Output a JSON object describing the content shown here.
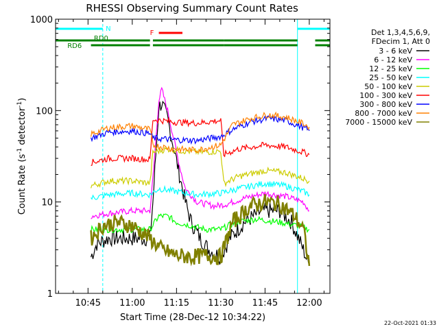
{
  "chart_data": {
    "type": "line",
    "title": "RHESSI Observing Summary Count Rates",
    "xlabel": "Start Time (28-Dec-12 10:34:22)",
    "ylabel_main": "Count Rate (s",
    "ylabel_sup1": "-1",
    "ylabel_mid": " detector",
    "ylabel_sup2": "-1",
    "ylabel_end": ")",
    "footer": "22-Oct-2021 01:33",
    "y_scale": "log",
    "ylim": [
      1,
      1000
    ],
    "xlim": [
      "10:34",
      "12:07"
    ],
    "x_ticks": [
      "10:45",
      "11:00",
      "11:15",
      "11:30",
      "11:45",
      "12:00"
    ],
    "y_ticks": [
      "1",
      "10",
      "100",
      "1000"
    ],
    "legend_header": [
      "Det 1,3,4,5,6,9,",
      "FDecim 1, Att 0"
    ],
    "legend_position": "right",
    "flags": [
      {
        "label": "N",
        "color": "#00ffff",
        "segments": [
          [
            "10:34",
            "10:50"
          ],
          [
            "11:56",
            "12:07"
          ]
        ]
      },
      {
        "label": "F",
        "color": "#ff0000",
        "segments": [
          [
            "11:09",
            "11:17"
          ]
        ]
      },
      {
        "label": "RD0",
        "color": "#008000",
        "segments": [
          [
            "10:34",
            "11:06"
          ],
          [
            "11:07",
            "11:31"
          ],
          [
            "11:31",
            "11:56"
          ],
          [
            "12:02",
            "12:07"
          ]
        ]
      },
      {
        "label": "RD6",
        "color": "#008000",
        "segments": [
          [
            "10:46",
            "11:06"
          ],
          [
            "11:07",
            "11:31"
          ],
          [
            "11:31",
            "11:56"
          ],
          [
            "12:02",
            "12:07"
          ]
        ]
      }
    ],
    "vlines": {
      "cyan": [
        "10:34",
        "10:50",
        "11:56",
        "12:07"
      ]
    },
    "series": [
      {
        "name": "3 - 6 keV",
        "color": "#000000",
        "points": [
          [
            "10:46",
            2.5
          ],
          [
            "10:48",
            3.5
          ],
          [
            "10:52",
            4
          ],
          [
            "11:00",
            4
          ],
          [
            "11:06",
            4
          ],
          [
            "11:07",
            10
          ],
          [
            "11:09",
            110
          ],
          [
            "11:10",
            120
          ],
          [
            "11:12",
            80
          ],
          [
            "11:14",
            40
          ],
          [
            "11:16",
            20
          ],
          [
            "11:18",
            10
          ],
          [
            "11:20",
            6
          ],
          [
            "11:23",
            4
          ],
          [
            "11:26",
            3
          ],
          [
            "11:30",
            2.5
          ],
          [
            "11:33",
            4
          ],
          [
            "11:38",
            6
          ],
          [
            "11:44",
            8
          ],
          [
            "11:50",
            8
          ],
          [
            "11:54",
            6
          ],
          [
            "11:58",
            3
          ],
          [
            "12:00",
            2
          ]
        ]
      },
      {
        "name": "6 - 12 keV",
        "color": "#ff00ff",
        "points": [
          [
            "10:46",
            7
          ],
          [
            "10:52",
            7.5
          ],
          [
            "11:00",
            8
          ],
          [
            "11:06",
            8
          ],
          [
            "11:07",
            18
          ],
          [
            "11:09",
            130
          ],
          [
            "11:10",
            170
          ],
          [
            "11:12",
            100
          ],
          [
            "11:14",
            50
          ],
          [
            "11:16",
            25
          ],
          [
            "11:18",
            14
          ],
          [
            "11:22",
            10
          ],
          [
            "11:28",
            9
          ],
          [
            "11:32",
            9.5
          ],
          [
            "11:38",
            11
          ],
          [
            "11:45",
            12.5
          ],
          [
            "11:52",
            11.5
          ],
          [
            "11:58",
            10
          ],
          [
            "12:00",
            8
          ]
        ]
      },
      {
        "name": "12 - 25 keV",
        "color": "#00ff00",
        "points": [
          [
            "10:46",
            5
          ],
          [
            "10:52",
            5
          ],
          [
            "11:00",
            5
          ],
          [
            "11:06",
            5
          ],
          [
            "11:09",
            7
          ],
          [
            "11:12",
            7
          ],
          [
            "11:15",
            6
          ],
          [
            "11:20",
            5.5
          ],
          [
            "11:25",
            5
          ],
          [
            "11:30",
            5
          ],
          [
            "11:35",
            6
          ],
          [
            "11:42",
            6.5
          ],
          [
            "11:50",
            6
          ],
          [
            "11:56",
            5.5
          ],
          [
            "12:00",
            5
          ]
        ]
      },
      {
        "name": "25 - 50 keV",
        "color": "#00ffff",
        "points": [
          [
            "10:46",
            11
          ],
          [
            "10:52",
            12
          ],
          [
            "11:00",
            12.5
          ],
          [
            "11:06",
            12
          ],
          [
            "11:09",
            14
          ],
          [
            "11:15",
            13
          ],
          [
            "11:22",
            12
          ],
          [
            "11:30",
            12.5
          ],
          [
            "11:36",
            14
          ],
          [
            "11:45",
            16
          ],
          [
            "11:52",
            15
          ],
          [
            "11:58",
            13
          ],
          [
            "12:00",
            12
          ]
        ]
      },
      {
        "name": "50 - 100 keV",
        "color": "#cccc00",
        "points": [
          [
            "10:46",
            15
          ],
          [
            "10:52",
            17
          ],
          [
            "11:00",
            17
          ],
          [
            "11:06",
            16
          ],
          [
            "11:07",
            35
          ],
          [
            "11:12",
            38
          ],
          [
            "11:18",
            36
          ],
          [
            "11:24",
            35
          ],
          [
            "11:30",
            36
          ],
          [
            "11:31",
            16
          ],
          [
            "11:36",
            19
          ],
          [
            "11:45",
            22
          ],
          [
            "11:52",
            21
          ],
          [
            "11:58",
            18
          ],
          [
            "12:00",
            17
          ]
        ]
      },
      {
        "name": "100 - 300 keV",
        "color": "#ff0000",
        "points": [
          [
            "10:46",
            27
          ],
          [
            "10:52",
            30
          ],
          [
            "11:00",
            30
          ],
          [
            "11:06",
            29
          ],
          [
            "11:07",
            80
          ],
          [
            "11:14",
            75
          ],
          [
            "11:22",
            73
          ],
          [
            "11:30",
            78
          ],
          [
            "11:31",
            33
          ],
          [
            "11:36",
            38
          ],
          [
            "11:45",
            42
          ],
          [
            "11:52",
            40
          ],
          [
            "11:58",
            35
          ],
          [
            "12:00",
            33
          ]
        ]
      },
      {
        "name": "300 - 800 keV",
        "color": "#0000ff",
        "points": [
          [
            "10:46",
            50
          ],
          [
            "10:52",
            58
          ],
          [
            "11:00",
            60
          ],
          [
            "11:06",
            56
          ],
          [
            "11:07",
            50
          ],
          [
            "11:14",
            48
          ],
          [
            "11:22",
            47
          ],
          [
            "11:30",
            52
          ],
          [
            "11:34",
            62
          ],
          [
            "11:40",
            75
          ],
          [
            "11:46",
            82
          ],
          [
            "11:52",
            78
          ],
          [
            "11:58",
            65
          ],
          [
            "12:00",
            60
          ]
        ]
      },
      {
        "name": "800 - 7000 keV",
        "color": "#ff8000",
        "points": [
          [
            "10:46",
            55
          ],
          [
            "10:52",
            65
          ],
          [
            "11:00",
            68
          ],
          [
            "11:06",
            62
          ],
          [
            "11:07",
            42
          ],
          [
            "11:14",
            38
          ],
          [
            "11:22",
            37
          ],
          [
            "11:30",
            42
          ],
          [
            "11:34",
            70
          ],
          [
            "11:40",
            82
          ],
          [
            "11:46",
            90
          ],
          [
            "11:52",
            85
          ],
          [
            "11:58",
            72
          ],
          [
            "12:00",
            66
          ]
        ]
      },
      {
        "name": "7000 - 15000 keV",
        "color": "#808000",
        "points": [
          [
            "10:46",
            4
          ],
          [
            "10:50",
            5.5
          ],
          [
            "10:55",
            6
          ],
          [
            "11:00",
            5.5
          ],
          [
            "11:06",
            4
          ],
          [
            "11:10",
            3
          ],
          [
            "11:15",
            2.6
          ],
          [
            "11:20",
            2.5
          ],
          [
            "11:25",
            2.6
          ],
          [
            "11:30",
            2.5
          ],
          [
            "11:34",
            6
          ],
          [
            "11:40",
            9
          ],
          [
            "11:45",
            10
          ],
          [
            "11:50",
            9.5
          ],
          [
            "11:55",
            7
          ],
          [
            "11:58",
            5
          ],
          [
            "12:00",
            2
          ]
        ]
      }
    ]
  }
}
